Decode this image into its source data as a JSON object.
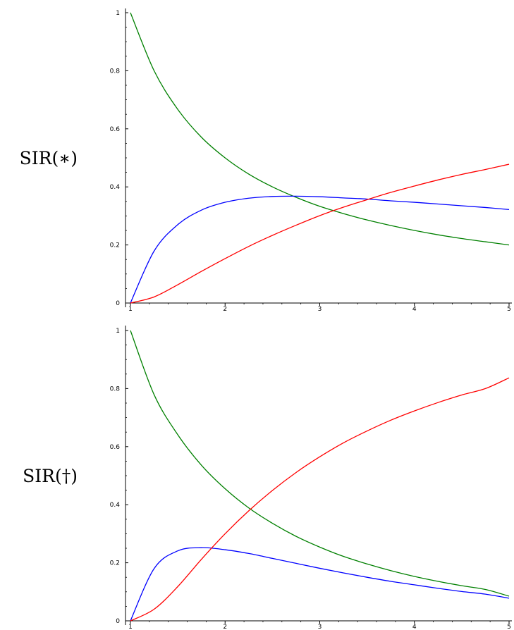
{
  "chart_data": [
    {
      "type": "line",
      "row_label": "SIR(∗)",
      "xlim": [
        1,
        5
      ],
      "ylim": [
        0,
        1
      ],
      "x_ticks": [
        "1",
        "2",
        "3",
        "4",
        "5"
      ],
      "y_ticks": [
        "0",
        "0.2",
        "0.4",
        "0.6",
        "0.8",
        "1"
      ],
      "grid": false,
      "x": [
        1.0,
        1.25,
        1.5,
        1.75,
        2.0,
        2.25,
        2.5,
        2.75,
        3.0,
        3.25,
        3.5,
        3.75,
        4.0,
        4.25,
        4.5,
        4.75,
        5.0
      ],
      "series": [
        {
          "color": "#008000",
          "values": [
            1.0,
            0.8,
            0.667,
            0.571,
            0.5,
            0.444,
            0.4,
            0.364,
            0.333,
            0.308,
            0.286,
            0.267,
            0.25,
            0.235,
            0.222,
            0.211,
            0.2
          ]
        },
        {
          "color": "#0000ff",
          "values": [
            0.0,
            0.179,
            0.27,
            0.32,
            0.347,
            0.361,
            0.367,
            0.368,
            0.366,
            0.362,
            0.358,
            0.352,
            0.347,
            0.341,
            0.335,
            0.329,
            0.322
          ]
        },
        {
          "color": "#ff0000",
          "values": [
            0.0,
            0.021,
            0.063,
            0.109,
            0.153,
            0.195,
            0.233,
            0.268,
            0.301,
            0.33,
            0.356,
            0.381,
            0.403,
            0.424,
            0.443,
            0.46,
            0.478
          ]
        }
      ]
    },
    {
      "type": "line",
      "row_label": "SIR(†)",
      "xlim": [
        1,
        5
      ],
      "ylim": [
        0,
        1
      ],
      "x_ticks": [
        "1",
        "2",
        "3",
        "4",
        "5"
      ],
      "y_ticks": [
        "0",
        "0.2",
        "0.4",
        "0.6",
        "0.8",
        "1"
      ],
      "grid": false,
      "x": [
        1.0,
        1.25,
        1.5,
        1.75,
        2.0,
        2.25,
        2.5,
        2.75,
        3.0,
        3.25,
        3.5,
        3.75,
        4.0,
        4.25,
        4.5,
        4.75,
        5.0
      ],
      "series": [
        {
          "color": "#008000",
          "values": [
            1.0,
            0.779,
            0.641,
            0.536,
            0.455,
            0.389,
            0.336,
            0.291,
            0.254,
            0.222,
            0.196,
            0.173,
            0.153,
            0.136,
            0.121,
            0.108,
            0.085
          ]
        },
        {
          "color": "#0000ff",
          "values": [
            0.0,
            0.18,
            0.241,
            0.252,
            0.245,
            0.232,
            0.215,
            0.198,
            0.181,
            0.165,
            0.15,
            0.136,
            0.124,
            0.112,
            0.101,
            0.092,
            0.078
          ]
        },
        {
          "color": "#ff0000",
          "values": [
            0.0,
            0.04,
            0.118,
            0.212,
            0.3,
            0.379,
            0.449,
            0.511,
            0.565,
            0.613,
            0.654,
            0.691,
            0.723,
            0.752,
            0.778,
            0.8,
            0.837
          ]
        }
      ]
    }
  ]
}
